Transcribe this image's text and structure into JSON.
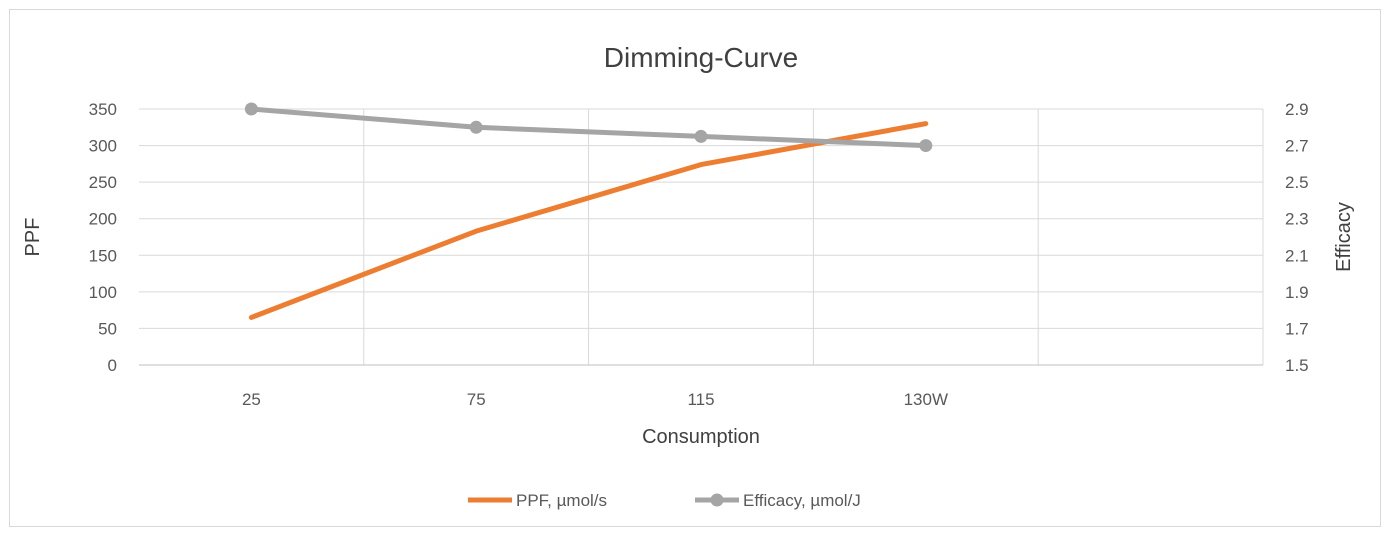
{
  "chart_data": {
    "type": "line",
    "title": "Dimming-Curve",
    "xlabel": "Consumption",
    "ylabel": "PPF",
    "y2label": "Efficacy",
    "categories": [
      "25",
      "75",
      "115",
      "130W"
    ],
    "ylim": [
      0,
      350
    ],
    "y_ticks": [
      "0",
      "50",
      "100",
      "150",
      "200",
      "250",
      "300",
      "350"
    ],
    "y2lim": [
      1.5,
      2.9
    ],
    "y2_ticks": [
      "1.5",
      "1.7",
      "1.9",
      "2.1",
      "2.3",
      "2.5",
      "2.7",
      "2.9"
    ],
    "grid": true,
    "legend_position": "bottom",
    "series": [
      {
        "name": "PPF, µmol/s",
        "axis": "left",
        "color": "#ed7d31",
        "markers": false,
        "values": [
          65,
          183,
          274,
          330
        ]
      },
      {
        "name": "Efficacy,  µmol/J",
        "axis": "right",
        "color": "#a5a5a5",
        "markers": true,
        "values": [
          2.9,
          2.8,
          2.75,
          2.7
        ]
      }
    ]
  }
}
